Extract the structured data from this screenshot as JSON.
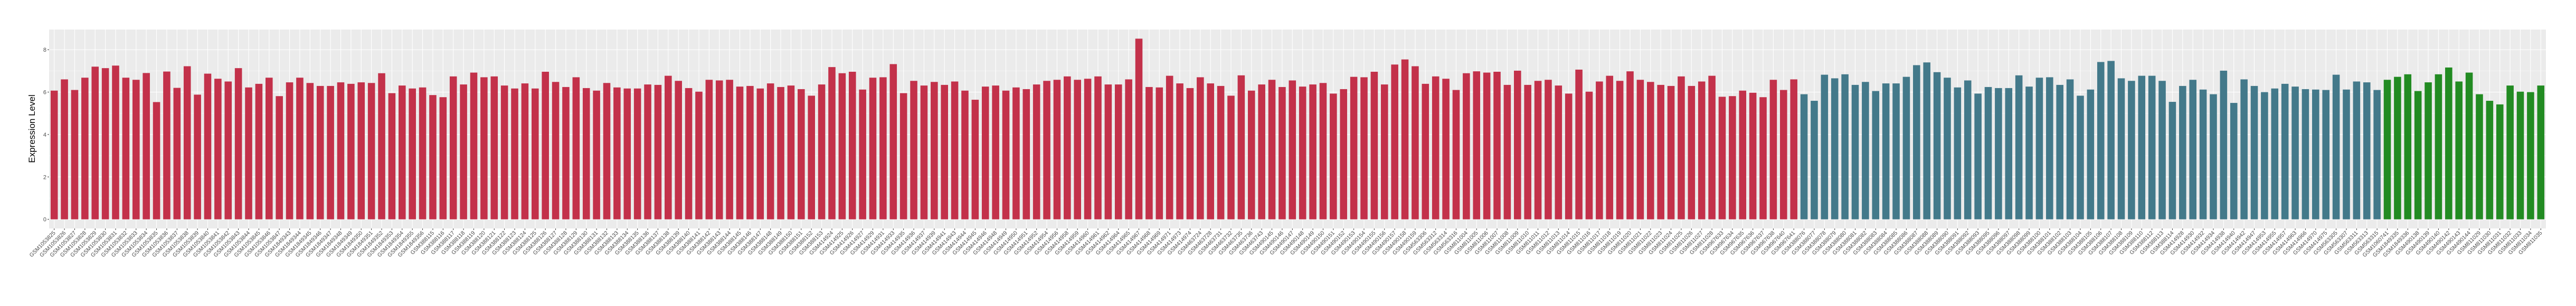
{
  "chart_data": {
    "type": "bar",
    "title": "",
    "xlabel": "",
    "ylabel": "Expression Level",
    "ylim": [
      -0.43,
      8.95
    ],
    "yticks": [
      0,
      2,
      4,
      6,
      8
    ],
    "grid": true,
    "legend": "none",
    "background": "#EBEBEB",
    "series": [
      {
        "color": "#C3314A",
        "categories": [
          "GSM1053825",
          "GSM1053826",
          "GSM1053827",
          "GSM1053828",
          "GSM1053829",
          "GSM1053830",
          "GSM1053831",
          "GSM1053832",
          "GSM1053833",
          "GSM1053834",
          "GSM1053835",
          "GSM1053836",
          "GSM1053837",
          "GSM1053838",
          "GSM1053839",
          "GSM1053840",
          "GSM1053841",
          "GSM1053842",
          "GSM1053843",
          "GSM1053844",
          "GSM1053845",
          "GSM1053846",
          "GSM1053847",
          "GSM1849343",
          "GSM1849344",
          "GSM1849345",
          "GSM1849346",
          "GSM1849347",
          "GSM1849348",
          "GSM1849349",
          "GSM1849350",
          "GSM1849351",
          "GSM1849352",
          "GSM1849353",
          "GSM1849354",
          "GSM1849355",
          "GSM1849356",
          "GSM388115",
          "GSM388116",
          "GSM388117",
          "GSM388118",
          "GSM388119",
          "GSM388120",
          "GSM388121",
          "GSM388122",
          "GSM388123",
          "GSM388124",
          "GSM388125",
          "GSM388126",
          "GSM388127",
          "GSM388128",
          "GSM388129",
          "GSM388130",
          "GSM388131",
          "GSM388132",
          "GSM388133",
          "GSM388134",
          "GSM388135",
          "GSM388136",
          "GSM388137",
          "GSM388138",
          "GSM388139",
          "GSM388140",
          "GSM388141",
          "GSM388142",
          "GSM388143",
          "GSM388144",
          "GSM388145",
          "GSM388146",
          "GSM388147",
          "GSM388148",
          "GSM388149",
          "GSM388150",
          "GSM388151",
          "GSM388152",
          "GSM388153",
          "GSM414924",
          "GSM414925",
          "GSM414926",
          "GSM414927",
          "GSM414929",
          "GSM414931",
          "GSM414933",
          "GSM414935",
          "GSM414936",
          "GSM414937",
          "GSM414939",
          "GSM414941",
          "GSM414943",
          "GSM414944",
          "GSM414945",
          "GSM414946",
          "GSM414948",
          "GSM414949",
          "GSM414950",
          "GSM414951",
          "GSM414952",
          "GSM414954",
          "GSM414956",
          "GSM414958",
          "GSM414959",
          "GSM414960",
          "GSM414961",
          "GSM414962",
          "GSM414964",
          "GSM414965",
          "GSM414967",
          "GSM414968",
          "GSM414969",
          "GSM414971",
          "GSM414973",
          "GSM414974",
          "GSM463724",
          "GSM463728",
          "GSM463731",
          "GSM463732",
          "GSM463735",
          "GSM463736",
          "GSM463743",
          "GSM490145",
          "GSM490146",
          "GSM490147",
          "GSM490148",
          "GSM490149",
          "GSM490150",
          "GSM490151",
          "GSM490152",
          "GSM490153",
          "GSM490154",
          "GSM490155",
          "GSM490156",
          "GSM490157",
          "GSM490158",
          "GSM490159",
          "GSM563306",
          "GSM563312",
          "GSM563314",
          "GSM563316",
          "GSM811004",
          "GSM811005",
          "GSM811006",
          "GSM811007",
          "GSM811008",
          "GSM811009",
          "GSM811010",
          "GSM811011",
          "GSM811012",
          "GSM811013",
          "GSM811014",
          "GSM811015",
          "GSM811016",
          "GSM811017",
          "GSM811018",
          "GSM811019",
          "GSM811020",
          "GSM811021",
          "GSM811022",
          "GSM811023",
          "GSM811024",
          "GSM811025",
          "GSM811026",
          "GSM811027",
          "GSM811028",
          "GSM967633",
          "GSM967634",
          "GSM967635",
          "GSM967636",
          "GSM967637",
          "GSM967638",
          "GSM967640",
          "GSM967641"
        ],
        "values": [
          6.07,
          6.6,
          6.1,
          6.68,
          7.2,
          7.13,
          7.25,
          6.68,
          6.58,
          6.9,
          5.53,
          6.97,
          6.2,
          7.22,
          5.88,
          6.87,
          6.63,
          6.5,
          7.13,
          6.22,
          6.39,
          6.68,
          5.81,
          6.46,
          6.68,
          6.43,
          6.29,
          6.29,
          6.46,
          6.39,
          6.46,
          6.43,
          6.89,
          5.95,
          6.31,
          6.17,
          6.22,
          5.86,
          5.76,
          6.74,
          6.36,
          6.92,
          6.7,
          6.74,
          6.31,
          6.17,
          6.41,
          6.17,
          6.96,
          6.48,
          6.24,
          6.7,
          6.19,
          6.07,
          6.43,
          6.22,
          6.17,
          6.17,
          6.36,
          6.34,
          6.77,
          6.53,
          6.19,
          6.02,
          6.58,
          6.55,
          6.58,
          6.26,
          6.29,
          6.17,
          6.41,
          6.24,
          6.31,
          6.14,
          5.83,
          6.36,
          7.18,
          6.89,
          6.96,
          6.12,
          6.68,
          6.7,
          7.32,
          5.95,
          6.53,
          6.31,
          6.48,
          6.34,
          6.5,
          6.07,
          5.64,
          6.26,
          6.31,
          6.07,
          6.22,
          6.14,
          6.36,
          6.53,
          6.58,
          6.74,
          6.58,
          6.63,
          6.74,
          6.36,
          6.36,
          6.6,
          8.52,
          6.24,
          6.22,
          6.77,
          6.41,
          6.19,
          6.7,
          6.41,
          6.29,
          5.83,
          6.79,
          6.07,
          6.36,
          6.58,
          6.24,
          6.55,
          6.26,
          6.36,
          6.43,
          5.93,
          6.14,
          6.72,
          6.7,
          6.96,
          6.36,
          7.3,
          7.54,
          7.22,
          6.39,
          6.74,
          6.63,
          6.1,
          6.89,
          6.98,
          6.92,
          6.96,
          6.34,
          7.01,
          6.34,
          6.53,
          6.58,
          6.31,
          5.93,
          7.06,
          6.02,
          6.5,
          6.77,
          6.53,
          6.98,
          6.58,
          6.48,
          6.34,
          6.29,
          6.74,
          6.29,
          6.5,
          6.77,
          5.78,
          5.81,
          6.07,
          5.97,
          5.76,
          6.58,
          6.1,
          6.6
        ]
      },
      {
        "color": "#43798A",
        "categories": [
          "GSM388076",
          "GSM388077",
          "GSM388078",
          "GSM388079",
          "GSM388080",
          "GSM388081",
          "GSM388082",
          "GSM388083",
          "GSM388084",
          "GSM388085",
          "GSM388086",
          "GSM388087",
          "GSM388088",
          "GSM388089",
          "GSM388090",
          "GSM388091",
          "GSM388092",
          "GSM388093",
          "GSM388095",
          "GSM388096",
          "GSM388097",
          "GSM388098",
          "GSM388099",
          "GSM388100",
          "GSM388101",
          "GSM388102",
          "GSM388103",
          "GSM388104",
          "GSM388105",
          "GSM388106",
          "GSM388107",
          "GSM388108",
          "GSM388109",
          "GSM388110",
          "GSM388112",
          "GSM388113",
          "GSM388114",
          "GSM414928",
          "GSM414930",
          "GSM414932",
          "GSM414934",
          "GSM414938",
          "GSM414940",
          "GSM414942",
          "GSM414947",
          "GSM414953",
          "GSM414955",
          "GSM414957",
          "GSM414963",
          "GSM414966",
          "GSM414970",
          "GSM414975",
          "GSM563305",
          "GSM563307",
          "GSM563311",
          "GSM563313",
          "GSM563315"
        ],
        "values": [
          5.9,
          5.59,
          6.82,
          6.65,
          6.84,
          6.34,
          6.48,
          6.05,
          6.41,
          6.41,
          6.72,
          7.27,
          7.4,
          6.94,
          6.68,
          6.22,
          6.55,
          5.93,
          6.24,
          6.19,
          6.19,
          6.79,
          6.26,
          6.68,
          6.7,
          6.34,
          6.6,
          5.83,
          6.12,
          7.42,
          7.47,
          6.65,
          6.53,
          6.77,
          6.77,
          6.53,
          5.54,
          6.29,
          6.58,
          6.12,
          5.9,
          7.01,
          5.49,
          6.6,
          6.29,
          6.0,
          6.17,
          6.39,
          6.26,
          6.14,
          6.12,
          6.1,
          6.82,
          6.12,
          6.5,
          6.46,
          6.1
        ]
      },
      {
        "color": "#228B22",
        "categories": [
          "GSM1060741",
          "GSM1849335",
          "GSM1849336",
          "GSM490138",
          "GSM490139",
          "GSM490140",
          "GSM490142",
          "GSM490143",
          "GSM490144",
          "GSM811029",
          "GSM811030",
          "GSM811031",
          "GSM811032",
          "GSM811033",
          "GSM811034",
          "GSM811035"
        ],
        "values": [
          6.58,
          6.72,
          6.84,
          6.05,
          6.46,
          6.84,
          7.16,
          6.5,
          6.92,
          5.9,
          5.59,
          5.42,
          6.31,
          6.02,
          6.0,
          6.31
        ]
      }
    ]
  }
}
